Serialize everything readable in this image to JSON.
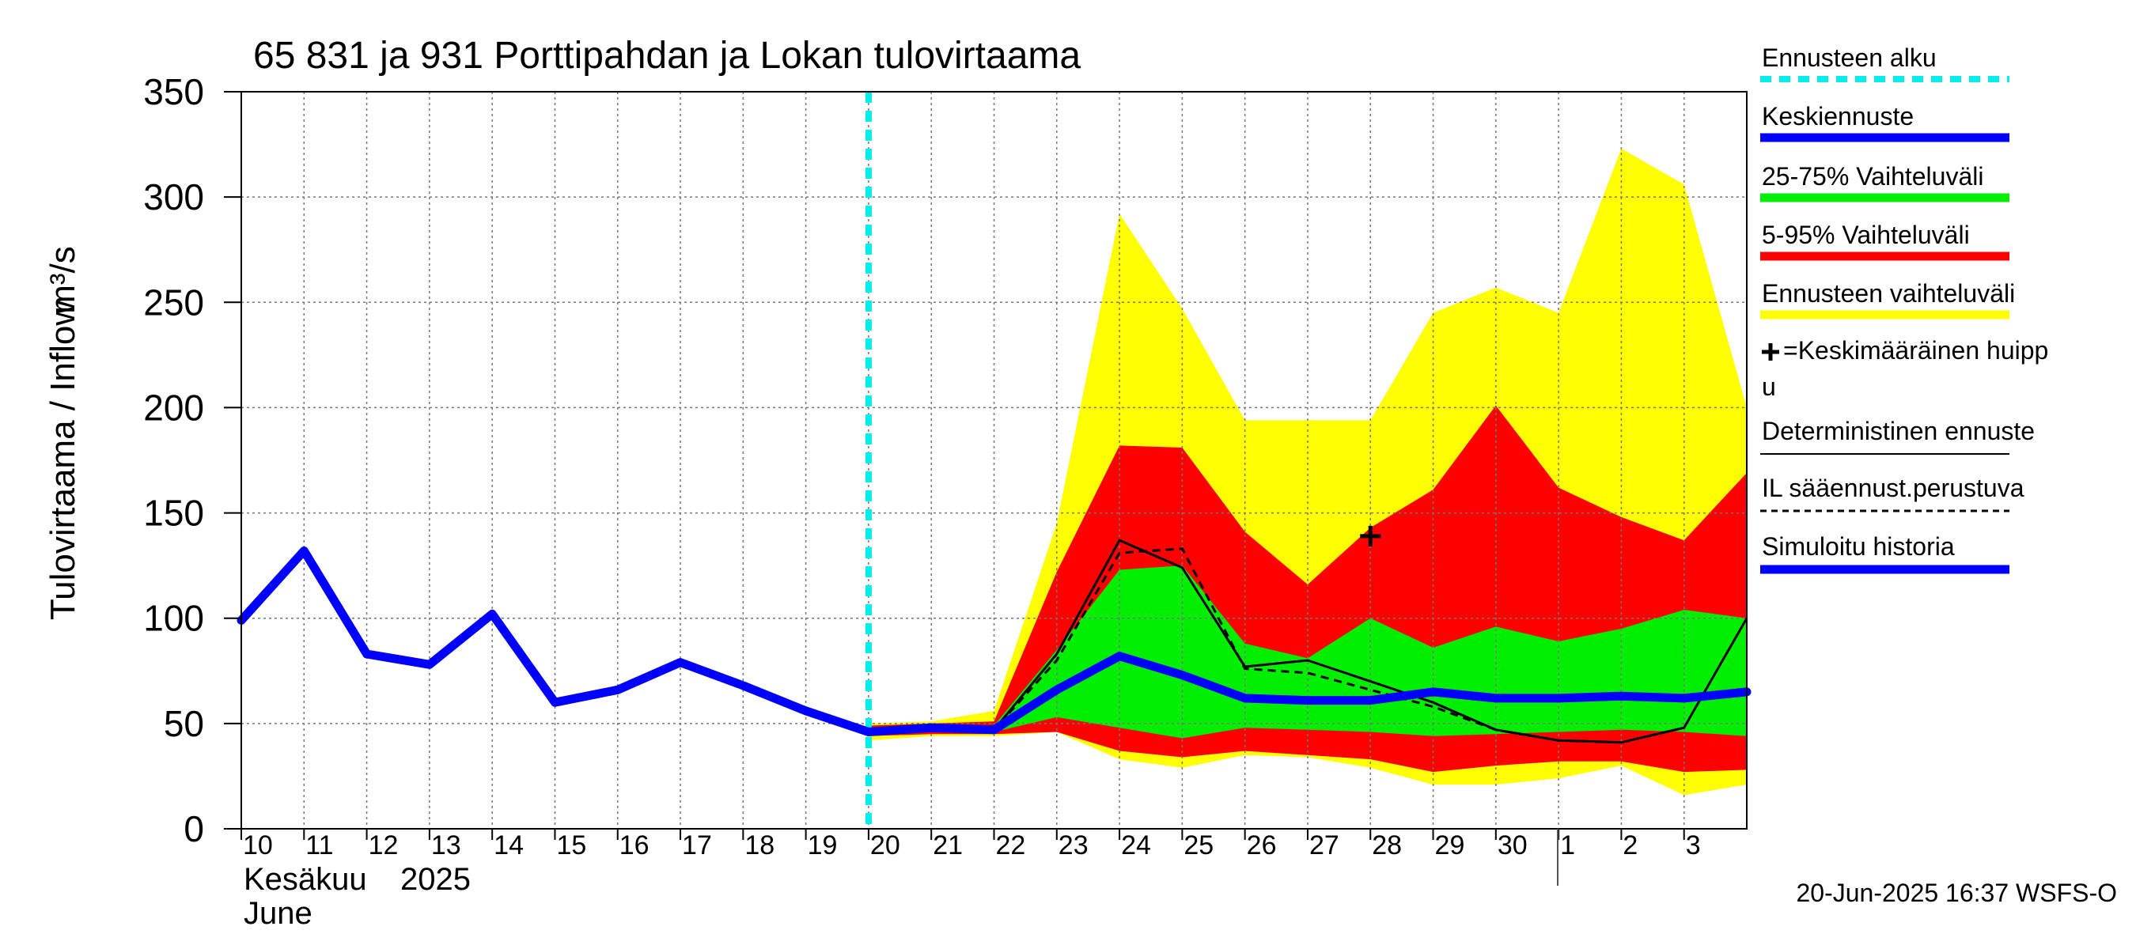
{
  "chart_data": {
    "type": "area",
    "title": "65 831 ja 931 Porttipahdan ja Lokan tulovirtaama",
    "ylabel": "Tulovirtaama / Inflow",
    "yunit": "m³/s",
    "ylim": [
      0,
      350
    ],
    "yticks": [
      0,
      50,
      100,
      150,
      200,
      250,
      300,
      350
    ],
    "xrange": [
      0,
      24
    ],
    "xticks": [
      {
        "x": 0,
        "label": "10"
      },
      {
        "x": 1,
        "label": "11"
      },
      {
        "x": 2,
        "label": "12"
      },
      {
        "x": 3,
        "label": "13"
      },
      {
        "x": 4,
        "label": "14"
      },
      {
        "x": 5,
        "label": "15"
      },
      {
        "x": 6,
        "label": "16"
      },
      {
        "x": 7,
        "label": "17"
      },
      {
        "x": 8,
        "label": "18"
      },
      {
        "x": 9,
        "label": "19"
      },
      {
        "x": 10,
        "label": "20"
      },
      {
        "x": 11,
        "label": "21"
      },
      {
        "x": 12,
        "label": "22"
      },
      {
        "x": 13,
        "label": "23"
      },
      {
        "x": 14,
        "label": "24"
      },
      {
        "x": 15,
        "label": "25"
      },
      {
        "x": 16,
        "label": "26"
      },
      {
        "x": 17,
        "label": "27"
      },
      {
        "x": 18,
        "label": "28"
      },
      {
        "x": 19,
        "label": "29"
      },
      {
        "x": 20,
        "label": "30"
      },
      {
        "x": 21,
        "label": "1"
      },
      {
        "x": 22,
        "label": "2"
      },
      {
        "x": 23,
        "label": "3"
      }
    ],
    "month_label_fi": "Kesäkuu",
    "year_label": "2025",
    "month_label_en": "June",
    "forecast_start_x": 10,
    "history": {
      "name": "Simuloitu historia",
      "x": [
        0,
        1,
        2,
        3,
        4,
        5,
        6,
        7,
        8,
        9,
        10
      ],
      "y": [
        99,
        132,
        83,
        78,
        102,
        60,
        66,
        79,
        68,
        56,
        46
      ]
    },
    "band_full": {
      "name": "Ennusteen vaihteluväli",
      "x": [
        10,
        11,
        12,
        13,
        14,
        15,
        16,
        17,
        18,
        19,
        20,
        21,
        22,
        23,
        24
      ],
      "low": [
        42,
        44,
        44,
        46,
        33,
        29,
        35,
        34,
        29,
        21,
        21,
        24,
        30,
        16,
        21
      ],
      "high": [
        50,
        51,
        56,
        145,
        292,
        247,
        194,
        194,
        194,
        245,
        257,
        245,
        323,
        306,
        200
      ]
    },
    "band_5_95": {
      "name": "5-95% Vaihteluväli",
      "x": [
        10,
        11,
        12,
        13,
        14,
        15,
        16,
        17,
        18,
        19,
        20,
        21,
        22,
        23,
        24
      ],
      "low": [
        44,
        45,
        45,
        46,
        37,
        34,
        37,
        35,
        33,
        27,
        30,
        32,
        32,
        27,
        28
      ],
      "high": [
        49,
        50,
        51,
        122,
        182,
        181,
        141,
        116,
        143,
        161,
        201,
        162,
        148,
        137,
        169
      ]
    },
    "band_25_75": {
      "name": "25-75% Vaihteluväli",
      "x": [
        10,
        11,
        12,
        13,
        14,
        15,
        16,
        17,
        18,
        19,
        20,
        21,
        22,
        23,
        24
      ],
      "low": [
        45,
        46,
        46,
        53,
        48,
        43,
        48,
        47,
        46,
        44,
        45,
        46,
        47,
        46,
        44
      ],
      "high": [
        48,
        49,
        49,
        85,
        123,
        125,
        88,
        81,
        100,
        86,
        96,
        89,
        95,
        104,
        100
      ]
    },
    "median": {
      "name": "Keskiennuste",
      "x": [
        10,
        11,
        12,
        13,
        14,
        15,
        16,
        17,
        18,
        19,
        20,
        21,
        22,
        23,
        24
      ],
      "y": [
        46,
        48,
        47,
        66,
        82,
        73,
        62,
        61,
        61,
        65,
        62,
        62,
        63,
        62,
        65
      ]
    },
    "deterministic": {
      "name": "Deterministinen ennuste",
      "x": [
        10,
        11,
        12,
        13,
        14,
        15,
        16,
        17,
        18,
        19,
        20,
        21,
        22,
        23,
        24
      ],
      "y": [
        46,
        48,
        47,
        83,
        137,
        124,
        77,
        80,
        70,
        60,
        47,
        42,
        41,
        48,
        100
      ]
    },
    "il_forecast": {
      "name": "IL sääennust.perustuva",
      "x": [
        10,
        11,
        12,
        13,
        14,
        15,
        16,
        17,
        18,
        19,
        20,
        21,
        22,
        23
      ],
      "y": [
        46,
        48,
        47,
        80,
        131,
        133,
        76,
        74,
        66,
        58,
        47,
        42,
        41,
        48
      ]
    },
    "mean_peak": {
      "x": 18,
      "y": 139,
      "name": "=Keskimääräinen huippu"
    },
    "colors": {
      "full_band": "#ffff00",
      "band_5_95": "#ff0000",
      "band_25_75": "#00ee00",
      "median": "#0000ff",
      "history": "#0000ff",
      "forecast_start": "#00eeee",
      "deterministic": "#000000",
      "grid": "#777777"
    },
    "legend": [
      {
        "label": "Ennusteen alku",
        "style": "cyan-dashed"
      },
      {
        "label": "Keskiennuste",
        "style": "blue-thick"
      },
      {
        "label": "25-75% Vaihteluväli",
        "style": "green-thick"
      },
      {
        "label": "5-95% Vaihteluväli",
        "style": "red-thick"
      },
      {
        "label": "Ennusteen vaihteluväli",
        "style": "yellow-thick"
      },
      {
        "label": "=Keskimääräinen huipp",
        "label2": "u",
        "style": "plus"
      },
      {
        "label": "Deterministinen ennuste",
        "style": "black-thin"
      },
      {
        "label": "IL sääennust.perustuva",
        "style": "black-dashed"
      },
      {
        "label": "Simuloitu historia",
        "style": "blue-thick"
      }
    ],
    "footer": "20-Jun-2025 16:37 WSFS-O"
  }
}
